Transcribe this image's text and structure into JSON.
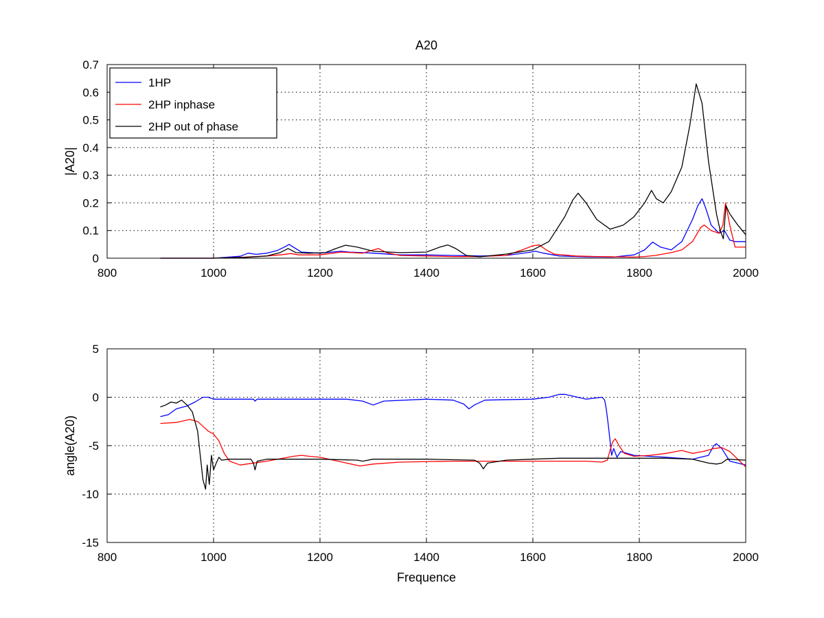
{
  "chart_data": [
    {
      "type": "line",
      "title": "A20",
      "xlabel": "",
      "ylabel": "|A20|",
      "xlim": [
        800,
        2000
      ],
      "ylim": [
        0,
        0.7
      ],
      "xticks": [
        "800",
        "1000",
        "1200",
        "1400",
        "1600",
        "1800",
        "2000"
      ],
      "yticks": [
        "0",
        "0.1",
        "0.2",
        "0.3",
        "0.4",
        "0.5",
        "0.6",
        "0.7"
      ],
      "grid": true,
      "legend_position": "top-left",
      "colors": {
        "1HP": "#0000ff",
        "2HP inphase": "#ff0000",
        "2HP out of phase": "#000000"
      },
      "series": [
        {
          "name": "1HP",
          "x": [
            900,
            1000,
            1050,
            1065,
            1080,
            1100,
            1120,
            1135,
            1142,
            1150,
            1165,
            1200,
            1240,
            1255,
            1280,
            1300,
            1350,
            1400,
            1450,
            1500,
            1550,
            1590,
            1605,
            1620,
            1650,
            1700,
            1750,
            1790,
            1810,
            1825,
            1840,
            1860,
            1880,
            1900,
            1910,
            1918,
            1925,
            1935,
            1950,
            1960,
            1970,
            1980,
            2000
          ],
          "y": [
            0.0,
            0.0,
            0.007,
            0.018,
            0.014,
            0.018,
            0.028,
            0.042,
            0.05,
            0.04,
            0.022,
            0.018,
            0.025,
            0.022,
            0.02,
            0.018,
            0.012,
            0.012,
            0.01,
            0.008,
            0.01,
            0.02,
            0.025,
            0.018,
            0.008,
            0.005,
            0.004,
            0.012,
            0.03,
            0.058,
            0.04,
            0.03,
            0.06,
            0.14,
            0.19,
            0.215,
            0.18,
            0.12,
            0.09,
            0.1,
            0.065,
            0.06,
            0.06
          ]
        },
        {
          "name": "2HP inphase",
          "x": [
            900,
            1000,
            1050,
            1100,
            1130,
            1145,
            1160,
            1200,
            1240,
            1260,
            1280,
            1295,
            1310,
            1325,
            1350,
            1400,
            1450,
            1500,
            1550,
            1580,
            1600,
            1612,
            1625,
            1640,
            1680,
            1720,
            1750,
            1790,
            1810,
            1830,
            1860,
            1880,
            1900,
            1915,
            1922,
            1935,
            1950,
            1957,
            1962,
            1970,
            1980,
            2000
          ],
          "y": [
            0.0,
            0.0,
            0.003,
            0.008,
            0.013,
            0.017,
            0.012,
            0.012,
            0.022,
            0.02,
            0.018,
            0.027,
            0.035,
            0.02,
            0.01,
            0.008,
            0.006,
            0.006,
            0.01,
            0.03,
            0.045,
            0.048,
            0.03,
            0.015,
            0.008,
            0.006,
            0.005,
            0.004,
            0.006,
            0.01,
            0.02,
            0.03,
            0.06,
            0.11,
            0.12,
            0.1,
            0.09,
            0.12,
            0.2,
            0.12,
            0.04,
            0.04
          ]
        },
        {
          "name": "2HP out of phase",
          "x": [
            900,
            1000,
            1060,
            1100,
            1125,
            1140,
            1155,
            1180,
            1210,
            1230,
            1248,
            1270,
            1300,
            1350,
            1400,
            1425,
            1440,
            1455,
            1475,
            1500,
            1550,
            1600,
            1630,
            1660,
            1675,
            1685,
            1700,
            1720,
            1745,
            1770,
            1790,
            1810,
            1823,
            1832,
            1845,
            1860,
            1880,
            1895,
            1907,
            1918,
            1930,
            1945,
            1952,
            1958,
            1963,
            1970,
            1985,
            2000
          ],
          "y": [
            0.0,
            0.0,
            0.003,
            0.008,
            0.02,
            0.035,
            0.02,
            0.018,
            0.02,
            0.035,
            0.047,
            0.04,
            0.025,
            0.02,
            0.022,
            0.04,
            0.048,
            0.035,
            0.01,
            0.005,
            0.015,
            0.03,
            0.06,
            0.15,
            0.21,
            0.235,
            0.2,
            0.14,
            0.105,
            0.12,
            0.15,
            0.2,
            0.245,
            0.215,
            0.2,
            0.24,
            0.33,
            0.48,
            0.63,
            0.56,
            0.35,
            0.16,
            0.1,
            0.07,
            0.19,
            0.16,
            0.12,
            0.085
          ]
        }
      ]
    },
    {
      "type": "line",
      "title": "",
      "xlabel": "Frequence",
      "ylabel": "angle(A20)",
      "xlim": [
        800,
        2000
      ],
      "ylim": [
        -15,
        5
      ],
      "xticks": [
        "800",
        "1000",
        "1200",
        "1400",
        "1600",
        "1800",
        "2000"
      ],
      "yticks": [
        "-15",
        "-10",
        "-5",
        "0",
        "5"
      ],
      "grid": true,
      "colors": {
        "1HP": "#0000ff",
        "2HP inphase": "#ff0000",
        "2HP out of phase": "#000000"
      },
      "series": [
        {
          "name": "1HP",
          "x": [
            900,
            915,
            930,
            950,
            965,
            980,
            990,
            1000,
            1050,
            1075,
            1078,
            1082,
            1150,
            1250,
            1280,
            1300,
            1320,
            1400,
            1450,
            1470,
            1480,
            1490,
            1510,
            1600,
            1630,
            1650,
            1660,
            1700,
            1730,
            1735,
            1738,
            1742,
            1745,
            1748,
            1752,
            1758,
            1765,
            1790,
            1850,
            1900,
            1930,
            1940,
            1945,
            1955,
            1970,
            2000
          ],
          "y": [
            -2.0,
            -1.8,
            -1.2,
            -0.9,
            -0.5,
            0.0,
            0.0,
            -0.2,
            -0.2,
            -0.2,
            -0.4,
            -0.2,
            -0.2,
            -0.2,
            -0.4,
            -0.8,
            -0.4,
            -0.2,
            -0.3,
            -0.7,
            -1.2,
            -0.8,
            -0.3,
            -0.2,
            0.0,
            0.3,
            0.3,
            -0.2,
            0.0,
            -0.3,
            -1.2,
            -3.0,
            -4.5,
            -6.0,
            -5.3,
            -6.2,
            -5.6,
            -6.0,
            -6.2,
            -6.4,
            -6.0,
            -5.0,
            -4.8,
            -5.3,
            -6.6,
            -7.0
          ]
        },
        {
          "name": "2HP inphase",
          "x": [
            900,
            930,
            955,
            970,
            980,
            990,
            1000,
            1010,
            1020,
            1030,
            1050,
            1100,
            1150,
            1165,
            1180,
            1200,
            1250,
            1275,
            1300,
            1350,
            1450,
            1550,
            1650,
            1700,
            1730,
            1740,
            1745,
            1750,
            1755,
            1762,
            1772,
            1790,
            1820,
            1850,
            1880,
            1900,
            1920,
            1940,
            1955,
            1970,
            1985,
            2000
          ],
          "y": [
            -2.7,
            -2.6,
            -2.3,
            -2.5,
            -3.0,
            -3.5,
            -3.8,
            -4.5,
            -5.8,
            -6.6,
            -7.0,
            -6.6,
            -6.1,
            -6.0,
            -6.1,
            -6.2,
            -6.8,
            -7.1,
            -6.9,
            -6.7,
            -6.6,
            -6.6,
            -6.6,
            -6.6,
            -6.7,
            -6.5,
            -5.5,
            -4.6,
            -4.3,
            -5.0,
            -5.8,
            -6.1,
            -6.0,
            -5.8,
            -5.5,
            -5.8,
            -5.6,
            -5.3,
            -5.2,
            -5.6,
            -6.4,
            -7.2
          ]
        },
        {
          "name": "2HP out of phase",
          "x": [
            900,
            910,
            920,
            930,
            940,
            950,
            960,
            965,
            970,
            975,
            980,
            985,
            988,
            992,
            996,
            1000,
            1005,
            1010,
            1015,
            1030,
            1070,
            1075,
            1078,
            1082,
            1100,
            1200,
            1270,
            1280,
            1300,
            1400,
            1490,
            1500,
            1507,
            1515,
            1550,
            1650,
            1750,
            1850,
            1900,
            1930,
            1945,
            1955,
            1965,
            2000
          ],
          "y": [
            -1.0,
            -0.8,
            -0.5,
            -0.6,
            -0.3,
            -0.8,
            -1.5,
            -2.5,
            -3.5,
            -6.0,
            -8.5,
            -9.5,
            -7.0,
            -9.0,
            -6.0,
            -7.5,
            -6.8,
            -6.2,
            -6.5,
            -6.4,
            -6.4,
            -6.8,
            -7.5,
            -6.6,
            -6.4,
            -6.4,
            -6.5,
            -6.6,
            -6.4,
            -6.4,
            -6.5,
            -6.8,
            -7.4,
            -6.8,
            -6.5,
            -6.3,
            -6.3,
            -6.3,
            -6.4,
            -6.8,
            -6.9,
            -6.8,
            -6.4,
            -6.5
          ]
        }
      ]
    }
  ]
}
